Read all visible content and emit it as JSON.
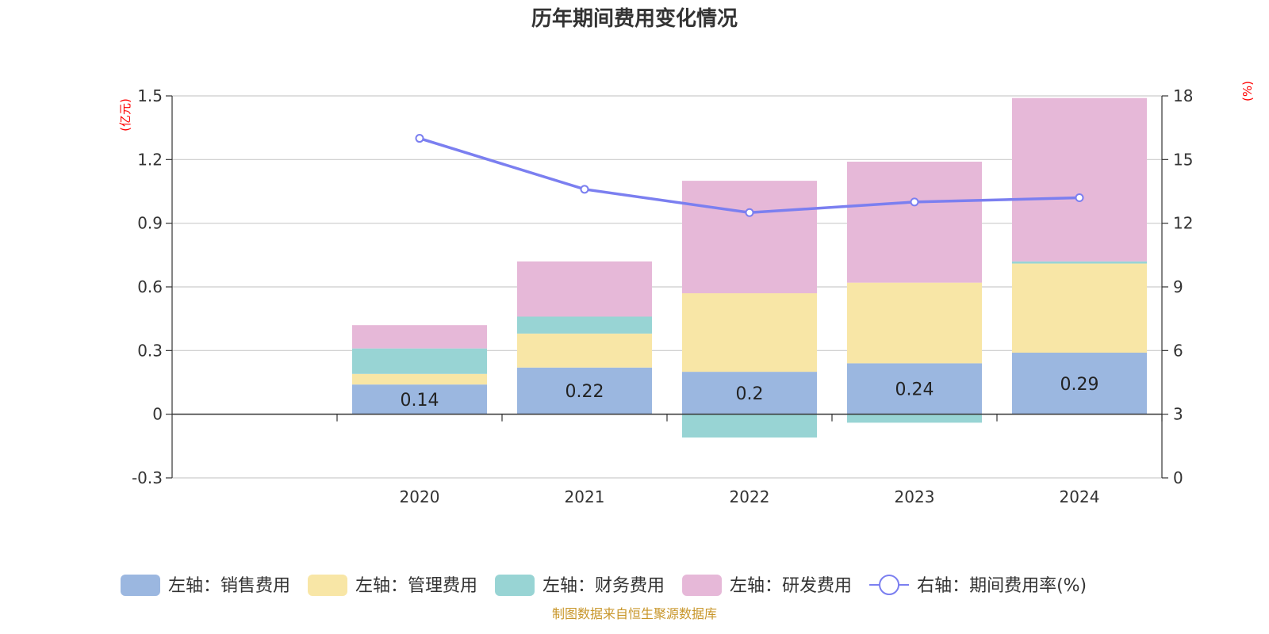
{
  "chart_data": {
    "type": "bar",
    "stacked": true,
    "title": "历年期间费用变化情况",
    "categories": [
      "2020",
      "2021",
      "2022",
      "2023",
      "2024"
    ],
    "left_axis": {
      "unit": "(亿元)",
      "min": -0.3,
      "max": 1.5,
      "ticks": [
        "-0.3",
        "0",
        "0.3",
        "0.6",
        "0.9",
        "1.2",
        "1.5"
      ]
    },
    "right_axis": {
      "unit": "(%)",
      "min": 0,
      "max": 18,
      "ticks": [
        "0",
        "3",
        "6",
        "9",
        "12",
        "15",
        "18"
      ]
    },
    "series": [
      {
        "name": "左轴：销售费用",
        "kind": "bar",
        "color": "#9bb7e0",
        "values": [
          0.14,
          0.22,
          0.2,
          0.24,
          0.29
        ],
        "labels": [
          "0.14",
          "0.22",
          "0.2",
          "0.24",
          "0.29"
        ]
      },
      {
        "name": "左轴：管理费用",
        "kind": "bar",
        "color": "#f8e6a6",
        "values": [
          0.05,
          0.16,
          0.37,
          0.38,
          0.42
        ]
      },
      {
        "name": "左轴：财务费用",
        "kind": "bar",
        "color": "#98d4d4",
        "values": [
          0.12,
          0.08,
          -0.11,
          -0.04,
          0.01
        ]
      },
      {
        "name": "左轴：研发费用",
        "kind": "bar",
        "color": "#e6b8d8",
        "values": [
          0.11,
          0.26,
          0.53,
          0.57,
          0.77
        ]
      },
      {
        "name": "右轴：期间费用率(%)",
        "kind": "line",
        "axis": "right",
        "color": "#7b7ff0",
        "values": [
          16.0,
          13.6,
          12.5,
          13.0,
          13.2
        ]
      }
    ],
    "source": "制图数据来自恒生聚源数据库"
  }
}
